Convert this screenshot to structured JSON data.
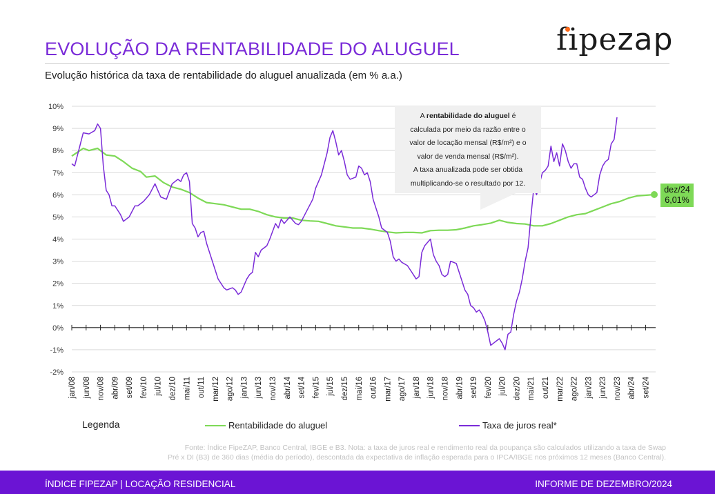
{
  "header": {
    "title": "EVOLUÇÃO DA RENTABILIDADE DO ALUGUEL",
    "subtitle": "Evolução histórica da taxa de rentabilidade do aluguel anualizada (em % a.a.)",
    "logo_text_a": "fipe",
    "logo_text_b": "zap"
  },
  "callout": {
    "line1_pre": "A ",
    "line1_bold": "rentabilidade do aluguel",
    "line1_post": " é",
    "line2": "calculada por meio da razão entre o",
    "line3": "valor de locação mensal (R$/m²) e o",
    "line4": "valor de venda mensal (R$/m²).",
    "line5": "A taxa anualizada pode ser obtida",
    "line6": "multiplicando-se  o resultado por 12."
  },
  "end_label": {
    "line1": "dez/24",
    "line2": "6,01%"
  },
  "legend": {
    "title": "Legenda",
    "series1": "Rentabilidade do aluguel",
    "series2": "Taxa de juros real*"
  },
  "source": {
    "line1": "Fonte: Índice FipeZAP, Banco Central, IBGE e B3. Nota: a taxa de juros real e rendimento real da poupança são calculados utilizando a taxa de Swap",
    "line2": "Pré x DI (B3) de 360 dias (média do período), descontada da expectativa de inflação esperada para o IPCA/IBGE nos próximos 12 meses (Banco Central)."
  },
  "footer": {
    "left": "ÍNDICE FIPEZAP | LOCAÇÃO RESIDENCIAL",
    "right": "INFORME DE DEZEMBRO/2024"
  },
  "colors": {
    "accent": "#6b14d4",
    "rent": "#7ed957",
    "rate": "#7a2bd8"
  },
  "chart_data": {
    "type": "line",
    "ylim": [
      -2,
      10
    ],
    "yticks": [
      "10%",
      "9%",
      "8%",
      "7%",
      "6%",
      "5%",
      "4%",
      "3%",
      "2%",
      "1%",
      "0%",
      "-1%",
      "-2%"
    ],
    "xticks": [
      "jan/08",
      "jun/08",
      "nov/08",
      "abr/09",
      "set/09",
      "fev/10",
      "jul/10",
      "dez/10",
      "mai/11",
      "out/11",
      "mar/12",
      "ago/12",
      "jan/13",
      "jun/13",
      "nov/13",
      "abr/14",
      "set/14",
      "fev/15",
      "jul/15",
      "dez/15",
      "mai/16",
      "out/16",
      "mar/17",
      "ago/17",
      "jan/18",
      "jun/18",
      "nov/18",
      "abr/19",
      "set/19",
      "fev/20",
      "jul/20",
      "dez/20",
      "mai/21",
      "out/21",
      "mar/22",
      "ago/22",
      "jan/23",
      "jun/23",
      "nov/23",
      "abr/24",
      "set/24"
    ],
    "x_start": "jan/08",
    "x_end": "dez/24",
    "series": [
      {
        "name": "Rentabilidade do aluguel",
        "color": "#7ed957",
        "points": [
          [
            "jan/08",
            7.75
          ],
          [
            "mai/08",
            8.1
          ],
          [
            "jul/08",
            8.0
          ],
          [
            "out/08",
            8.1
          ],
          [
            "jan/09",
            7.8
          ],
          [
            "abr/09",
            7.75
          ],
          [
            "jul/09",
            7.5
          ],
          [
            "out/09",
            7.2
          ],
          [
            "jan/10",
            7.05
          ],
          [
            "mar/10",
            6.8
          ],
          [
            "jun/10",
            6.85
          ],
          [
            "set/10",
            6.55
          ],
          [
            "dez/10",
            6.35
          ],
          [
            "mar/11",
            6.25
          ],
          [
            "jun/11",
            6.1
          ],
          [
            "set/11",
            5.85
          ],
          [
            "dez/11",
            5.65
          ],
          [
            "mar/12",
            5.6
          ],
          [
            "jun/12",
            5.55
          ],
          [
            "set/12",
            5.45
          ],
          [
            "dez/12",
            5.35
          ],
          [
            "mar/13",
            5.35
          ],
          [
            "jun/13",
            5.25
          ],
          [
            "set/13",
            5.1
          ],
          [
            "dez/13",
            5.0
          ],
          [
            "mar/14",
            4.95
          ],
          [
            "jun/14",
            4.95
          ],
          [
            "set/14",
            4.85
          ],
          [
            "dez/14",
            4.82
          ],
          [
            "mar/15",
            4.8
          ],
          [
            "jun/15",
            4.7
          ],
          [
            "set/15",
            4.6
          ],
          [
            "dez/15",
            4.55
          ],
          [
            "mar/16",
            4.5
          ],
          [
            "jun/16",
            4.5
          ],
          [
            "set/16",
            4.45
          ],
          [
            "dez/16",
            4.38
          ],
          [
            "mar/17",
            4.32
          ],
          [
            "jun/17",
            4.28
          ],
          [
            "set/17",
            4.3
          ],
          [
            "dez/17",
            4.3
          ],
          [
            "mar/18",
            4.28
          ],
          [
            "jun/18",
            4.38
          ],
          [
            "set/18",
            4.4
          ],
          [
            "dez/18",
            4.4
          ],
          [
            "mar/19",
            4.42
          ],
          [
            "jun/19",
            4.5
          ],
          [
            "set/19",
            4.6
          ],
          [
            "dez/19",
            4.65
          ],
          [
            "mar/20",
            4.72
          ],
          [
            "jun/20",
            4.85
          ],
          [
            "set/20",
            4.75
          ],
          [
            "dez/20",
            4.7
          ],
          [
            "mar/21",
            4.68
          ],
          [
            "jun/21",
            4.6
          ],
          [
            "set/21",
            4.6
          ],
          [
            "dez/21",
            4.7
          ],
          [
            "mar/22",
            4.85
          ],
          [
            "jun/22",
            5.0
          ],
          [
            "set/22",
            5.1
          ],
          [
            "dez/22",
            5.15
          ],
          [
            "mar/23",
            5.3
          ],
          [
            "jun/23",
            5.45
          ],
          [
            "set/23",
            5.6
          ],
          [
            "dez/23",
            5.7
          ],
          [
            "mar/24",
            5.85
          ],
          [
            "jun/24",
            5.95
          ],
          [
            "set/24",
            5.98
          ],
          [
            "dez/24",
            6.01
          ]
        ]
      },
      {
        "name": "Taxa de juros real*",
        "color": "#7a2bd8",
        "points": [
          [
            "jan/08",
            7.4
          ],
          [
            "fev/08",
            7.3
          ],
          [
            "abr/08",
            8.3
          ],
          [
            "mai/08",
            8.8
          ],
          [
            "jul/08",
            8.75
          ],
          [
            "set/08",
            8.9
          ],
          [
            "out/08",
            9.2
          ],
          [
            "nov/08",
            9.0
          ],
          [
            "dez/08",
            7.3
          ],
          [
            "jan/09",
            6.2
          ],
          [
            "fev/09",
            6.0
          ],
          [
            "mar/09",
            5.5
          ],
          [
            "abr/09",
            5.5
          ],
          [
            "jun/09",
            5.1
          ],
          [
            "jul/09",
            4.8
          ],
          [
            "set/09",
            5.0
          ],
          [
            "nov/09",
            5.5
          ],
          [
            "dez/09",
            5.5
          ],
          [
            "fev/10",
            5.7
          ],
          [
            "abr/10",
            6.0
          ],
          [
            "jun/10",
            6.5
          ],
          [
            "jul/10",
            6.2
          ],
          [
            "ago/10",
            5.9
          ],
          [
            "out/10",
            5.8
          ],
          [
            "dez/10",
            6.5
          ],
          [
            "fev/11",
            6.7
          ],
          [
            "mar/11",
            6.6
          ],
          [
            "abr/11",
            6.9
          ],
          [
            "mai/11",
            7.0
          ],
          [
            "jun/11",
            6.6
          ],
          [
            "jul/11",
            4.7
          ],
          [
            "ago/11",
            4.5
          ],
          [
            "set/11",
            4.1
          ],
          [
            "out/11",
            4.3
          ],
          [
            "nov/11",
            4.35
          ],
          [
            "dez/11",
            3.8
          ],
          [
            "fev/12",
            3.0
          ],
          [
            "abr/12",
            2.2
          ],
          [
            "jun/12",
            1.8
          ],
          [
            "jul/12",
            1.7
          ],
          [
            "set/12",
            1.8
          ],
          [
            "out/12",
            1.7
          ],
          [
            "nov/12",
            1.5
          ],
          [
            "dez/12",
            1.6
          ],
          [
            "fev/13",
            2.2
          ],
          [
            "mar/13",
            2.4
          ],
          [
            "abr/13",
            2.5
          ],
          [
            "mai/13",
            3.4
          ],
          [
            "jun/13",
            3.2
          ],
          [
            "jul/13",
            3.5
          ],
          [
            "set/13",
            3.7
          ],
          [
            "out/13",
            4.0
          ],
          [
            "dez/13",
            4.7
          ],
          [
            "jan/14",
            4.5
          ],
          [
            "fev/14",
            4.9
          ],
          [
            "mar/14",
            4.7
          ],
          [
            "mai/14",
            5.0
          ],
          [
            "jul/14",
            4.7
          ],
          [
            "ago/14",
            4.65
          ],
          [
            "set/14",
            4.8
          ],
          [
            "nov/14",
            5.3
          ],
          [
            "jan/15",
            5.8
          ],
          [
            "fev/15",
            6.3
          ],
          [
            "abr/15",
            6.9
          ],
          [
            "jun/15",
            7.9
          ],
          [
            "jul/15",
            8.6
          ],
          [
            "ago/15",
            8.9
          ],
          [
            "set/15",
            8.4
          ],
          [
            "out/15",
            7.8
          ],
          [
            "nov/15",
            8.0
          ],
          [
            "dez/15",
            7.5
          ],
          [
            "jan/16",
            6.9
          ],
          [
            "fev/16",
            6.7
          ],
          [
            "abr/16",
            6.8
          ],
          [
            "mai/16",
            7.3
          ],
          [
            "jun/16",
            7.2
          ],
          [
            "jul/16",
            6.9
          ],
          [
            "ago/16",
            7.0
          ],
          [
            "set/16",
            6.6
          ],
          [
            "out/16",
            5.8
          ],
          [
            "dez/16",
            5.0
          ],
          [
            "jan/17",
            4.5
          ],
          [
            "mar/17",
            4.3
          ],
          [
            "abr/17",
            3.9
          ],
          [
            "mai/17",
            3.2
          ],
          [
            "jun/17",
            3.0
          ],
          [
            "jul/17",
            3.1
          ],
          [
            "ago/17",
            2.95
          ],
          [
            "out/17",
            2.8
          ],
          [
            "dez/17",
            2.4
          ],
          [
            "jan/18",
            2.2
          ],
          [
            "fev/18",
            2.3
          ],
          [
            "mar/18",
            3.4
          ],
          [
            "abr/18",
            3.7
          ],
          [
            "jun/18",
            4.0
          ],
          [
            "jul/18",
            3.3
          ],
          [
            "ago/18",
            3.0
          ],
          [
            "set/18",
            2.8
          ],
          [
            "out/18",
            2.4
          ],
          [
            "nov/18",
            2.3
          ],
          [
            "dez/18",
            2.4
          ],
          [
            "jan/19",
            3.0
          ],
          [
            "mar/19",
            2.9
          ],
          [
            "abr/19",
            2.5
          ],
          [
            "jun/19",
            1.7
          ],
          [
            "jul/19",
            1.5
          ],
          [
            "ago/19",
            1.0
          ],
          [
            "set/19",
            0.9
          ],
          [
            "out/19",
            0.7
          ],
          [
            "nov/19",
            0.8
          ],
          [
            "dez/19",
            0.6
          ],
          [
            "jan/20",
            0.3
          ],
          [
            "fev/20",
            -0.2
          ],
          [
            "mar/20",
            -0.8
          ],
          [
            "abr/20",
            -0.7
          ],
          [
            "mai/20",
            -0.6
          ],
          [
            "jun/20",
            -0.5
          ],
          [
            "jul/20",
            -0.7
          ],
          [
            "ago/20",
            -1.0
          ],
          [
            "set/20",
            -0.3
          ],
          [
            "out/20",
            -0.2
          ],
          [
            "nov/20",
            0.6
          ],
          [
            "dez/20",
            1.2
          ],
          [
            "jan/21",
            1.6
          ],
          [
            "fev/21",
            2.2
          ],
          [
            "mar/21",
            3.0
          ],
          [
            "abr/21",
            3.6
          ],
          [
            "mai/21",
            5.0
          ],
          [
            "jun/21",
            6.3
          ],
          [
            "jul/21",
            6.0
          ],
          [
            "ago/21",
            6.5
          ],
          [
            "set/21",
            7.0
          ],
          [
            "out/21",
            7.1
          ],
          [
            "nov/21",
            7.3
          ],
          [
            "dez/21",
            8.2
          ],
          [
            "jan/22",
            7.5
          ],
          [
            "fev/22",
            7.9
          ],
          [
            "mar/22",
            7.3
          ],
          [
            "abr/22",
            8.3
          ],
          [
            "mai/22",
            8.0
          ],
          [
            "jun/22",
            7.5
          ],
          [
            "jul/22",
            7.2
          ],
          [
            "ago/22",
            7.4
          ],
          [
            "set/22",
            7.4
          ],
          [
            "out/22",
            6.8
          ],
          [
            "nov/22",
            6.7
          ],
          [
            "dez/22",
            6.3
          ],
          [
            "jan/23",
            6.0
          ],
          [
            "fev/23",
            5.9
          ],
          [
            "mar/23",
            6.0
          ],
          [
            "abr/23",
            6.1
          ],
          [
            "mai/23",
            6.9
          ],
          [
            "jun/23",
            7.3
          ],
          [
            "jul/23",
            7.5
          ],
          [
            "ago/23",
            7.6
          ],
          [
            "set/23",
            8.3
          ],
          [
            "out/23",
            8.5
          ],
          [
            "nov/23",
            9.5
          ]
        ]
      }
    ]
  }
}
